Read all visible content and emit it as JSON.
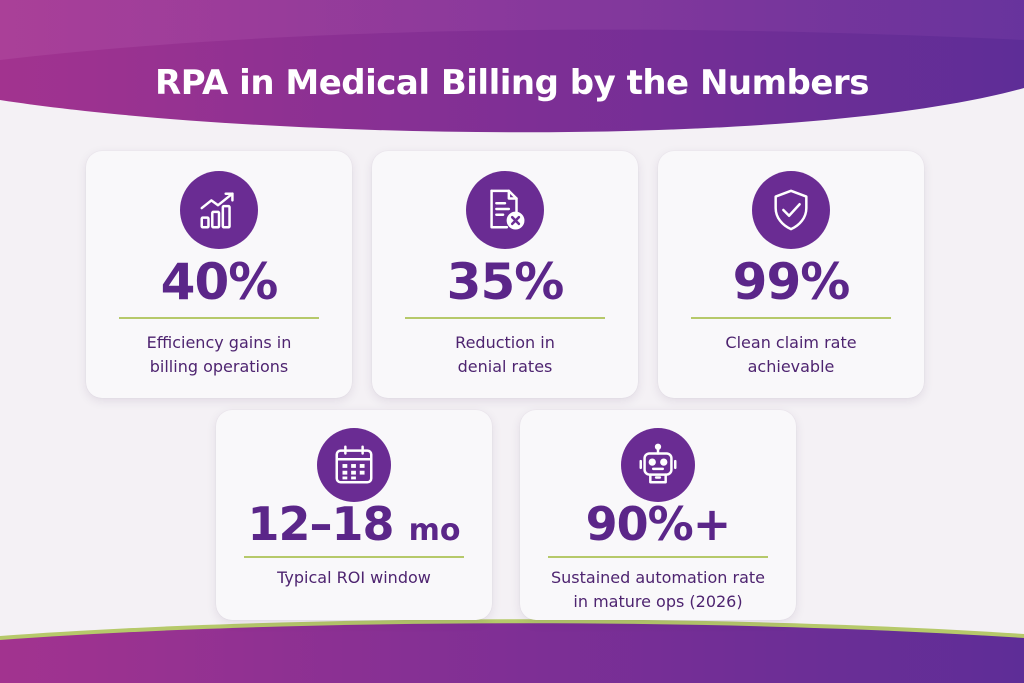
{
  "title": "RPA in Medical Billing by the Numbers",
  "colors": {
    "band_start": "#9a2f96",
    "band_end": "#5e2d97",
    "icon_bg": "#6a2c93",
    "stat_text": "#5b2689",
    "divider": "#b6c96a",
    "background": "#f4f1f5"
  },
  "stats": [
    {
      "icon": "rising-bar-chart-icon",
      "value": "40%",
      "unit": "",
      "line1": "Efficiency gains in",
      "line2": "billing operations"
    },
    {
      "icon": "document-denied-icon",
      "value": "35%",
      "unit": "",
      "line1": "Reduction in",
      "line2": "denial rates"
    },
    {
      "icon": "shield-check-icon",
      "value": "99%",
      "unit": "",
      "line1": "Clean claim rate",
      "line2": "achievable"
    },
    {
      "icon": "calendar-icon",
      "value": "12–18",
      "unit": "mo",
      "line1": "Typical ROI window",
      "line2": ""
    },
    {
      "icon": "robot-icon",
      "value": "90%+",
      "unit": "",
      "line1": "Sustained automation rate",
      "line2": "in mature ops (2026)"
    }
  ]
}
